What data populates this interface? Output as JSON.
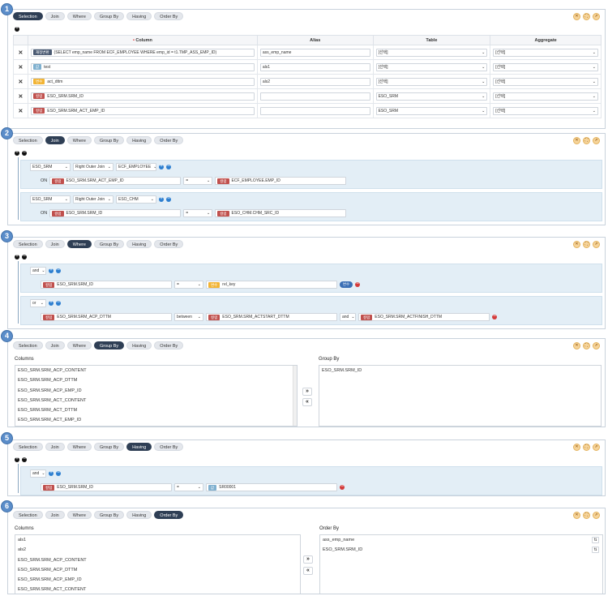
{
  "tabs": [
    "Selection",
    "Join",
    "Where",
    "Group By",
    "Having",
    "Order By"
  ],
  "badges": [
    "1",
    "2",
    "3",
    "4",
    "5",
    "6"
  ],
  "tools": {
    "close": "✕",
    "expand": "⛶",
    "link": "⇗"
  },
  "selection": {
    "headers": {
      "column": "Column",
      "alias": "Alias",
      "table": "Table",
      "aggregate": "Aggregate"
    },
    "rows": [
      {
        "tag": "재정변환",
        "tag_type": "sub",
        "value": "(SELECT emp_name FROM ECF_EMPLOYEE WHERE emp_id = t1.TMP_ASS_EMP_ID)",
        "alias": "ass_emp_name",
        "table": "[선택]",
        "aggregate": "[선택]"
      },
      {
        "tag": "값",
        "tag_type": "val",
        "value": "test",
        "alias": "als1",
        "table": "[선택]",
        "aggregate": "[선택]"
      },
      {
        "tag": "변수",
        "tag_type": "const",
        "value": "act_dttm",
        "alias": "als2",
        "table": "[선택]",
        "aggregate": "[선택]"
      },
      {
        "tag": "컬럼",
        "tag_type": "col",
        "value": "ESO_SRM.SRM_ID",
        "alias": "",
        "table": "ESO_SRM",
        "aggregate": "[선택]"
      },
      {
        "tag": "컬럼",
        "tag_type": "col",
        "value": "ESO_SRM.SRM_ACT_EMP_ID",
        "alias": "",
        "table": "ESO_SRM",
        "aggregate": "[선택]"
      }
    ]
  },
  "join": {
    "blocks": [
      {
        "left": "ESO_SRM",
        "type": "Right Outer Join",
        "right": "ECF_EMPLOYEE",
        "on": "ON",
        "tag": "컬럼",
        "col": "ESO_SRM.SRM_ACT_EMP_ID",
        "op": "=",
        "tag2": "컬럼",
        "col2": "ECF_EMPLOYEE.EMP_ID"
      },
      {
        "left": "ESO_SRM",
        "type": "Right Outer Join",
        "right": "ESO_CHM",
        "on": "ON",
        "tag": "컬럼",
        "col": "ESO_SRM.SRM_ID",
        "op": "=",
        "tag2": "컬럼",
        "col2": "ESO_CHM.CHM_SRC_ID"
      }
    ]
  },
  "where": {
    "blocks": [
      {
        "logic": "and",
        "tag": "컬럼",
        "col": "ESO_SRM.SRM_ID",
        "op": "=",
        "tag2": "변수",
        "val": "rel_key",
        "switch": "변수"
      },
      {
        "logic": "or",
        "tag": "컬럼",
        "col": "ESO_SRM.SRM_ACP_DTTM",
        "op": "between",
        "tag2": "컬럼",
        "val": "ESO_SRM.SRM_ACTSTART_DTTM",
        "and": "and",
        "tag3": "컬럼",
        "val2": "ESO_SRM.SRM_ACTFINISH_DTTM"
      }
    ]
  },
  "groupby": {
    "columns_label": "Columns",
    "groupby_label": "Group By",
    "columns": [
      "ESO_SRM.SRM_ACP_CONTENT",
      "ESO_SRM.SRM_ACP_DTTM",
      "ESO_SRM.SRM_ACP_EMP_ID",
      "ESO_SRM.SRM_ACT_CONTENT",
      "ESO_SRM.SRM_ACT_DTTM",
      "ESO_SRM.SRM_ACT_EMP_ID"
    ],
    "selected": [
      "ESO_SRM.SRM_ID"
    ]
  },
  "having": {
    "logic": "and",
    "tag": "컬럼",
    "col": "ESO_SRM.SRM_ID",
    "op": "=",
    "tag2": "값",
    "val": "SR00001"
  },
  "orderby": {
    "columns_label": "Columns",
    "orderby_label": "Order By",
    "columns": [
      "als1",
      "als2",
      "ESO_SRM.SRM_ACP_CONTENT",
      "ESO_SRM.SRM_ACP_DTTM",
      "ESO_SRM.SRM_ACP_EMP_ID",
      "ESO_SRM.SRM_ACT_CONTENT"
    ],
    "selected": [
      "ass_emp_name",
      "ESO_SRM.SRM_ID"
    ]
  },
  "move_right": "»",
  "move_left": "«",
  "sort_icon": "⇅"
}
